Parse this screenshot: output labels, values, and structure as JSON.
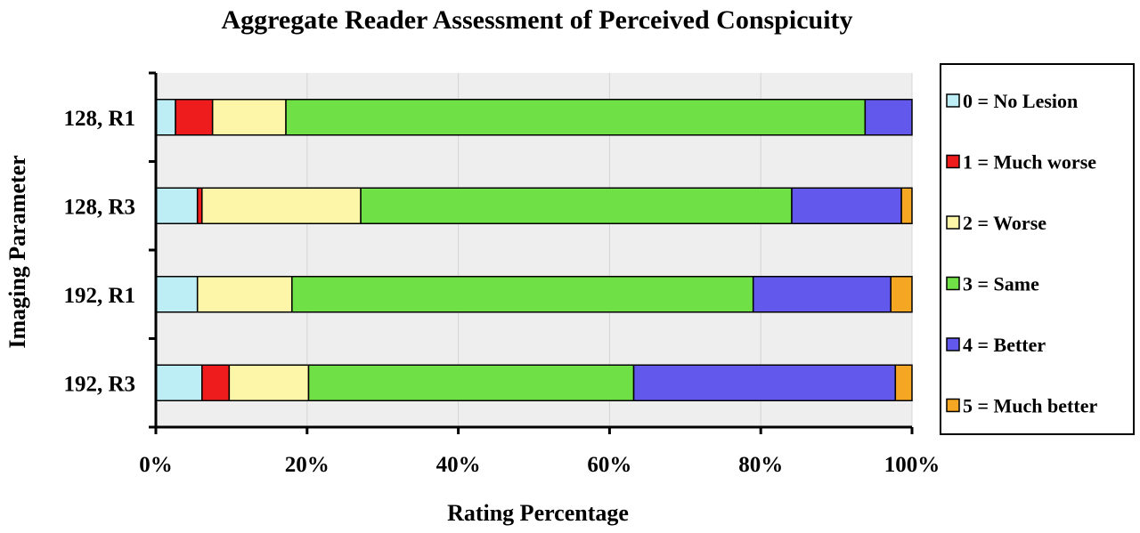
{
  "chart_data": {
    "type": "bar",
    "stacked": true,
    "orientation": "horizontal",
    "title": "Aggregate Reader Assessment of Perceived Conspicuity",
    "xlabel": "Rating Percentage",
    "ylabel": "Imaging Parameter",
    "categories": [
      "128, R1",
      "128, R3",
      "192, R1",
      "192, R3"
    ],
    "xlim": [
      0,
      100
    ],
    "xticks": [
      "0%",
      "20%",
      "40%",
      "60%",
      "80%",
      "100%"
    ],
    "xtick_values": [
      0,
      20,
      40,
      60,
      80,
      100
    ],
    "grid": "vertical",
    "legend_position": "right",
    "series": [
      {
        "name": "0 = No Lesion",
        "color": "#bdeef5",
        "values": [
          2.6,
          5.5,
          5.5,
          6.1
        ]
      },
      {
        "name": "1 = Much worse",
        "color": "#ee1c1c",
        "values": [
          4.9,
          0.6,
          0.0,
          3.6
        ]
      },
      {
        "name": "2 = Worse",
        "color": "#fdf5a8",
        "values": [
          9.7,
          21.0,
          12.5,
          10.5
        ]
      },
      {
        "name": "3 = Same",
        "color": "#6fe046",
        "values": [
          76.6,
          57.0,
          61.0,
          43.0
        ]
      },
      {
        "name": "4 = Better",
        "color": "#6258ec",
        "values": [
          6.2,
          14.5,
          18.2,
          34.6
        ]
      },
      {
        "name": "5 = Much better",
        "color": "#f5a623",
        "values": [
          0.0,
          1.4,
          2.8,
          2.2
        ]
      }
    ]
  }
}
